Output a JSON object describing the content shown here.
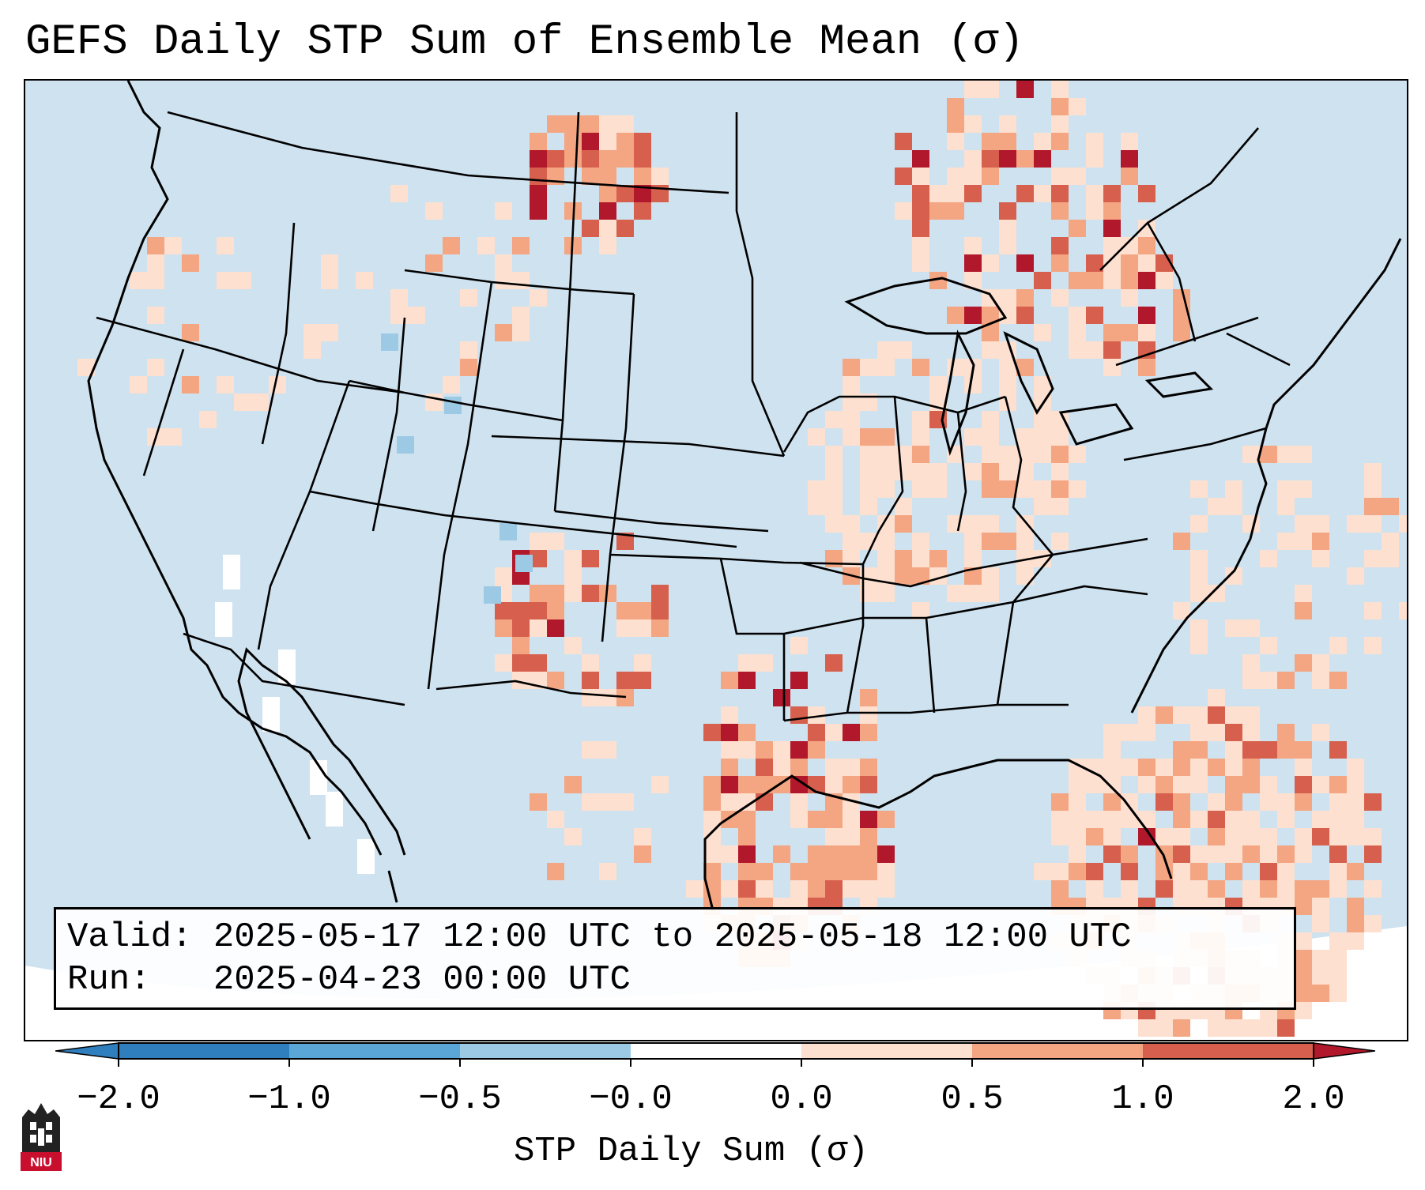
{
  "title": "GEFS Daily STP Sum of Ensemble Mean (σ)",
  "info": {
    "valid_label": "Valid:",
    "valid_value": "2025-05-17 12:00 UTC to 2025-05-18 12:00 UTC",
    "run_label": "Run:",
    "run_value": "2025-04-23 00:00 UTC"
  },
  "colorbar": {
    "label": "STP Daily Sum (σ)",
    "ticks": [
      "−2.0",
      "−1.0",
      "−0.5",
      "−0.0",
      "0.0",
      "0.5",
      "1.0",
      "2.0"
    ],
    "colors": [
      "#2f7fbf",
      "#5aa6d6",
      "#9ccae5",
      "#d2e5f0",
      "#fde0d0",
      "#f4a582",
      "#d6604d",
      "#b2182b"
    ]
  },
  "legend_colors": {
    "background": "#cfe2ef",
    "near_zero_negative": "#d2e5f0",
    "slight_negative": "#9ccae5",
    "near_zero_positive": "#fde0d0",
    "low_positive": "#f4a582",
    "medium_positive": "#d6604d",
    "high_positive": "#b2182b",
    "missing": "#ffffff"
  },
  "logo": {
    "text": "NIU",
    "color": "#c8102e"
  }
}
